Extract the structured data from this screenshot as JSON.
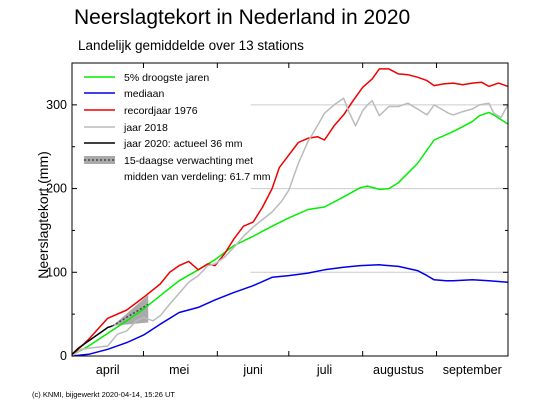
{
  "header": {
    "title": "Neerslagtekort in Nederland in 2020",
    "subtitle": "Landelijk gemiddelde over 13 stations"
  },
  "footer": {
    "credit": "(c) KNMI, bijgewerkt 2020-04-14, 15:26 UT"
  },
  "chart_data": {
    "type": "line",
    "title": "Neerslagtekort in Nederland in 2020",
    "subtitle": "Landelijk gemiddelde over 13 stations",
    "xlabel": "",
    "ylabel": "Neerslagtekort (mm)",
    "xlim": [
      1,
      184
    ],
    "ylim": [
      0,
      350
    ],
    "yticks": [
      0,
      100,
      200,
      300
    ],
    "x_unit": "day since 1 April",
    "month_labels": [
      {
        "label": "april",
        "day": 16
      },
      {
        "label": "mei",
        "day": 46
      },
      {
        "label": "juni",
        "day": 77
      },
      {
        "label": "juli",
        "day": 107
      },
      {
        "label": "augustus",
        "day": 138
      },
      {
        "label": "september",
        "day": 169
      }
    ],
    "grid": false,
    "reference_lines": [
      100,
      200,
      300
    ],
    "legend_position": "top-left",
    "series": [
      {
        "name": "5% droogste jaren",
        "color": "#00ee00",
        "x": [
          1,
          8,
          16,
          24,
          31,
          38,
          46,
          54,
          61,
          69,
          77,
          85,
          92,
          100,
          107,
          115,
          122,
          125,
          130,
          134,
          138,
          146,
          153,
          161,
          169,
          172,
          176,
          178,
          184
        ],
        "y": [
          1,
          12,
          27,
          42,
          56,
          72,
          90,
          103,
          115,
          132,
          143,
          155,
          165,
          175,
          178,
          190,
          201,
          203,
          199,
          200,
          207,
          230,
          258,
          268,
          280,
          287,
          291,
          288,
          277
        ]
      },
      {
        "name": "mediaan",
        "color": "#0000ee",
        "x": [
          1,
          8,
          16,
          24,
          31,
          38,
          46,
          54,
          61,
          69,
          77,
          85,
          92,
          100,
          107,
          115,
          122,
          130,
          138,
          146,
          150,
          153,
          158,
          161,
          169,
          176,
          184
        ],
        "y": [
          0,
          2,
          8,
          16,
          25,
          38,
          52,
          58,
          67,
          76,
          84,
          94,
          96,
          99,
          103,
          106,
          108,
          109,
          107,
          102,
          96,
          91,
          90,
          90,
          91,
          90,
          88
        ]
      },
      {
        "name": "recordjaar 1976",
        "color": "#ee0000",
        "x": [
          1,
          8,
          16,
          24,
          31,
          38,
          42,
          46,
          50,
          54,
          58,
          61,
          65,
          69,
          73,
          77,
          81,
          85,
          88,
          92,
          96,
          100,
          104,
          107,
          111,
          115,
          119,
          123,
          127,
          130,
          134,
          138,
          142,
          146,
          150,
          153,
          157,
          161,
          165,
          169,
          173,
          176,
          180,
          184
        ],
        "y": [
          1,
          20,
          45,
          55,
          70,
          86,
          100,
          108,
          113,
          103,
          110,
          108,
          122,
          140,
          155,
          160,
          178,
          200,
          225,
          240,
          255,
          260,
          262,
          258,
          275,
          288,
          305,
          321,
          331,
          343,
          343,
          337,
          336,
          333,
          329,
          323,
          325,
          326,
          324,
          326,
          327,
          322,
          326,
          322
        ]
      },
      {
        "name": "jaar 2018",
        "color": "#bbbbbb",
        "x": [
          1,
          5,
          10,
          16,
          20,
          24,
          28,
          31,
          35,
          38,
          42,
          46,
          50,
          54,
          58,
          61,
          65,
          69,
          73,
          77,
          81,
          85,
          89,
          92,
          96,
          100,
          104,
          107,
          111,
          115,
          117,
          120,
          123,
          125,
          127,
          130,
          134,
          138,
          142,
          146,
          150,
          153,
          156,
          159,
          161,
          165,
          169,
          172,
          176,
          178,
          181,
          184
        ],
        "y": [
          0,
          8,
          10,
          12,
          26,
          30,
          42,
          46,
          42,
          48,
          62,
          75,
          88,
          96,
          108,
          110,
          118,
          130,
          143,
          154,
          163,
          172,
          185,
          198,
          230,
          256,
          275,
          290,
          300,
          308,
          293,
          275,
          293,
          300,
          305,
          287,
          298,
          298,
          302,
          295,
          288,
          300,
          295,
          290,
          288,
          292,
          295,
          300,
          302,
          290,
          285,
          300
        ]
      },
      {
        "name": "jaar 2020: actueel 36 mm",
        "color": "#000000",
        "x": [
          1,
          4,
          8,
          11,
          14,
          16,
          18
        ],
        "y": [
          2,
          10,
          18,
          24,
          30,
          34,
          36
        ]
      }
    ],
    "forecast": {
      "name": "15-daagse verwachting met midden van verdeling: 61.7 mm",
      "label_line1": "15-daagse verwachting met",
      "label_line2": "midden van verdeling: 61.7 mm",
      "start_day": 18,
      "end_day": 33,
      "start_value": 36,
      "mid_end": 61.7,
      "spread_low": 40,
      "spread_high": 73
    },
    "annotations": [
      {
        "day": 16,
        "value": 36,
        "text": "actueel 36 mm"
      },
      {
        "day": 33,
        "value": 61.7,
        "text": "61.7 mm"
      }
    ]
  }
}
